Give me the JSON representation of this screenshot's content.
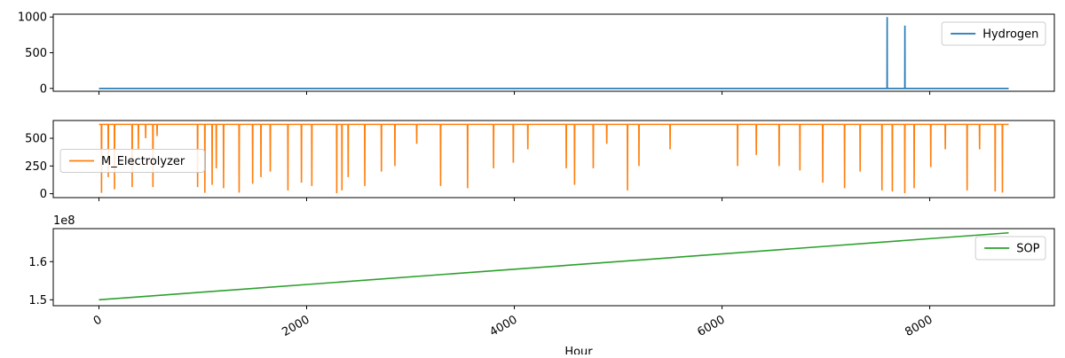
{
  "chart_data": [
    {
      "type": "line",
      "xlim": [
        -440,
        9200
      ],
      "ylim": [
        -40,
        1040
      ],
      "yticks": [
        0,
        500,
        1000
      ],
      "yticklabels": [
        "0",
        "500",
        "1000"
      ],
      "legend": {
        "placement": "top-right"
      },
      "series": [
        {
          "name": "Hydrogen",
          "color": "#1f77b4",
          "x": [
            0,
            7589,
            7590,
            7591,
            7760,
            7761,
            7762,
            8760
          ],
          "values": [
            0,
            0,
            1000,
            0,
            0,
            880,
            0,
            0
          ]
        }
      ]
    },
    {
      "type": "line",
      "xlim": [
        -440,
        9200
      ],
      "ylim": [
        -35,
        660
      ],
      "yticks": [
        0,
        250,
        500
      ],
      "yticklabels": [
        "0",
        "250",
        "500"
      ],
      "legend": {
        "placement": "center-left"
      },
      "series": [
        {
          "name": "M_Electrolyzer",
          "color": "#ff7f0e",
          "baseline": 625,
          "dips": [
            [
              25,
              8
            ],
            [
              90,
              150
            ],
            [
              150,
              40
            ],
            [
              320,
              60
            ],
            [
              380,
              400
            ],
            [
              450,
              500
            ],
            [
              520,
              60
            ],
            [
              560,
              520
            ],
            [
              950,
              60
            ],
            [
              1020,
              8
            ],
            [
              1090,
              80
            ],
            [
              1130,
              230
            ],
            [
              1200,
              50
            ],
            [
              1350,
              10
            ],
            [
              1480,
              90
            ],
            [
              1560,
              150
            ],
            [
              1650,
              200
            ],
            [
              1820,
              30
            ],
            [
              1950,
              100
            ],
            [
              2050,
              70
            ],
            [
              2290,
              5
            ],
            [
              2340,
              30
            ],
            [
              2400,
              150
            ],
            [
              2560,
              70
            ],
            [
              2720,
              200
            ],
            [
              2850,
              250
            ],
            [
              3060,
              450
            ],
            [
              3290,
              70
            ],
            [
              3550,
              50
            ],
            [
              3800,
              230
            ],
            [
              3990,
              280
            ],
            [
              4130,
              400
            ],
            [
              4500,
              230
            ],
            [
              4580,
              80
            ],
            [
              4760,
              230
            ],
            [
              4890,
              450
            ],
            [
              5090,
              30
            ],
            [
              5200,
              250
            ],
            [
              5500,
              400
            ],
            [
              6150,
              250
            ],
            [
              6330,
              350
            ],
            [
              6550,
              250
            ],
            [
              6750,
              210
            ],
            [
              6970,
              100
            ],
            [
              7180,
              50
            ],
            [
              7330,
              200
            ],
            [
              7540,
              30
            ],
            [
              7640,
              20
            ],
            [
              7760,
              5
            ],
            [
              7850,
              50
            ],
            [
              8010,
              240
            ],
            [
              8150,
              400
            ],
            [
              8360,
              30
            ],
            [
              8480,
              400
            ],
            [
              8630,
              20
            ],
            [
              8700,
              10
            ]
          ]
        }
      ]
    },
    {
      "type": "line",
      "xlim": [
        -440,
        9200
      ],
      "ylim": [
        148450000.0,
        168650000.0
      ],
      "yticks": [
        150000000.0,
        160000000.0
      ],
      "yticklabels": [
        "1.5",
        "1.6"
      ],
      "offset_label": "1e8",
      "legend": {
        "placement": "top-right"
      },
      "series": [
        {
          "name": "SOP",
          "color": "#2ca02c",
          "x": [
            0,
            8760
          ],
          "values": [
            150000000.0,
            167550000.0
          ]
        }
      ]
    }
  ],
  "x_axis": {
    "ticks": [
      0,
      2000,
      4000,
      6000,
      8000
    ],
    "ticklabels": [
      "0",
      "2000",
      "4000",
      "6000",
      "8000"
    ],
    "label": "Hour"
  },
  "grid": false
}
